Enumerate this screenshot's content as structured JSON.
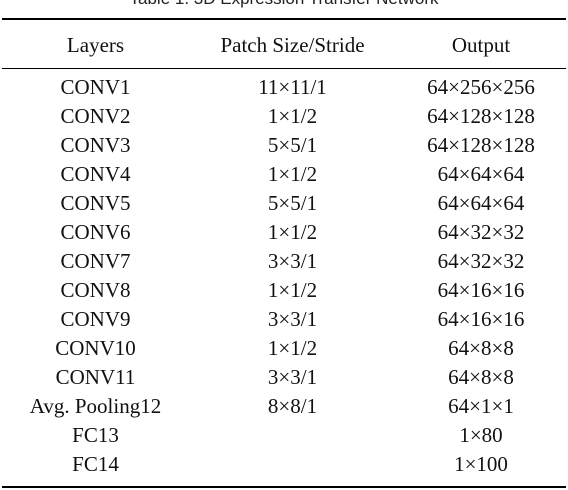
{
  "caption": "Table 1. 3D Expression Transfer Network",
  "header": {
    "layers": "Layers",
    "patch": "Patch Size/Stride",
    "output": "Output"
  },
  "rows": [
    {
      "layer": "CONV1",
      "patch": "11×11/1",
      "output": "64×256×256"
    },
    {
      "layer": "CONV2",
      "patch": "1×1/2",
      "output": "64×128×128"
    },
    {
      "layer": "CONV3",
      "patch": "5×5/1",
      "output": "64×128×128"
    },
    {
      "layer": "CONV4",
      "patch": "1×1/2",
      "output": "64×64×64"
    },
    {
      "layer": "CONV5",
      "patch": "5×5/1",
      "output": "64×64×64"
    },
    {
      "layer": "CONV6",
      "patch": "1×1/2",
      "output": "64×32×32"
    },
    {
      "layer": "CONV7",
      "patch": "3×3/1",
      "output": "64×32×32"
    },
    {
      "layer": "CONV8",
      "patch": "1×1/2",
      "output": "64×16×16"
    },
    {
      "layer": "CONV9",
      "patch": "3×3/1",
      "output": "64×16×16"
    },
    {
      "layer": "CONV10",
      "patch": "1×1/2",
      "output": "64×8×8"
    },
    {
      "layer": "CONV11",
      "patch": "3×3/1",
      "output": "64×8×8"
    },
    {
      "layer": "Avg. Pooling12",
      "patch": "8×8/1",
      "output": "64×1×1"
    },
    {
      "layer": "FC13",
      "patch": "",
      "output": "1×80"
    },
    {
      "layer": "FC14",
      "patch": "",
      "output": "1×100"
    }
  ]
}
